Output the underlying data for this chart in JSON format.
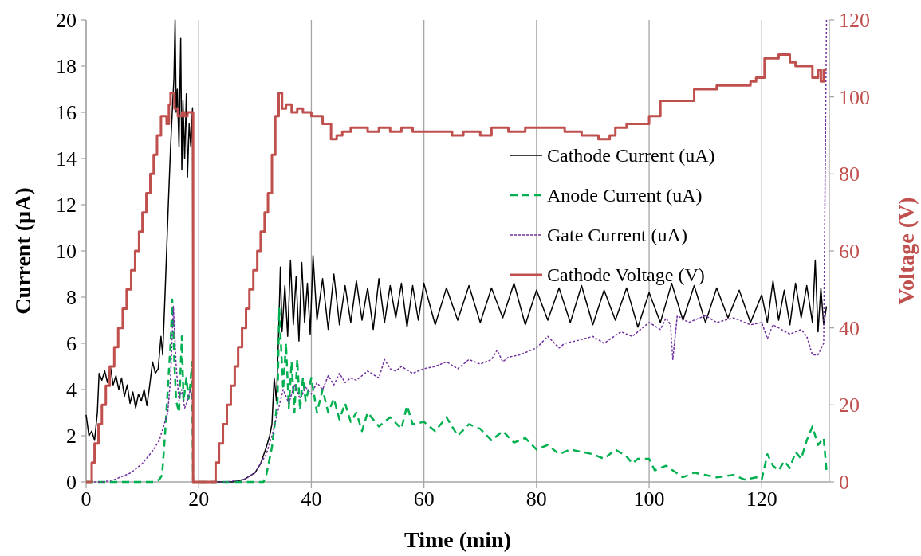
{
  "chart_data": {
    "type": "line",
    "xlabel": "Time (min)",
    "ylabel": "Current (µA)",
    "y2label": "Voltage (V)",
    "xlim": [
      0,
      132
    ],
    "xticks": [
      0,
      20,
      40,
      60,
      80,
      100,
      120
    ],
    "ylim": [
      0,
      20
    ],
    "yticks": [
      0,
      2,
      4,
      6,
      8,
      10,
      12,
      14,
      16,
      18,
      20
    ],
    "y2lim": [
      0,
      120
    ],
    "y2ticks": [
      0,
      20,
      40,
      60,
      80,
      100,
      120
    ],
    "grid": "x",
    "legend": "right",
    "series": [
      {
        "name": "Cathode Current (uA)",
        "color": "#000000",
        "line_style": "solid",
        "x": [
          0,
          0.5,
          1,
          1.5,
          2,
          2.3,
          2.8,
          3.3,
          3.8,
          4.3,
          4.8,
          5.3,
          5.8,
          6.3,
          6.8,
          7.3,
          7.8,
          8.3,
          8.8,
          9.3,
          9.8,
          10.3,
          10.8,
          11.3,
          11.8,
          12.3,
          12.8,
          13.3,
          13.6,
          14,
          14.3,
          14.6,
          15,
          15.3,
          15.6,
          15.8,
          16,
          16.2,
          16.5,
          16.8,
          17,
          17.2,
          17.5,
          17.8,
          18,
          18.3,
          18.6,
          18.9,
          19,
          22,
          26,
          28,
          30,
          31,
          32,
          32.6,
          33,
          33.4,
          33.8,
          34.2,
          34.5,
          34.8,
          35.3,
          35.8,
          36.3,
          36.8,
          37.3,
          37.8,
          38.3,
          38.8,
          39.3,
          39.8,
          40.3,
          41,
          42,
          43,
          44,
          45,
          46,
          47,
          48,
          49,
          50,
          51,
          52,
          53,
          54,
          55,
          56,
          57,
          58,
          59,
          60,
          62,
          64,
          66,
          68,
          70,
          72,
          74,
          76,
          78,
          80,
          82,
          84,
          86,
          88,
          90,
          92,
          94,
          96,
          98,
          100,
          102,
          104,
          106,
          108,
          110,
          112,
          114,
          116,
          118,
          120,
          121,
          122,
          123,
          124,
          125,
          126,
          127,
          128,
          129,
          129.5,
          130,
          130.5,
          131,
          131.5
        ],
        "values": [
          2.9,
          2.0,
          2.2,
          1.8,
          3.0,
          4.7,
          4.4,
          4.8,
          4.3,
          5.0,
          4.2,
          4.6,
          4.0,
          4.5,
          3.7,
          4.2,
          3.4,
          3.9,
          3.2,
          3.8,
          3.5,
          4.0,
          3.3,
          4.2,
          5.2,
          4.7,
          4.9,
          6.3,
          5.5,
          8.0,
          10,
          12,
          14.5,
          16,
          17.5,
          20,
          16,
          17,
          14.5,
          19.2,
          13.5,
          16.5,
          14,
          16.8,
          13.2,
          15.5,
          14.5,
          16.2,
          0,
          0,
          0,
          0.1,
          0.4,
          0.8,
          1.5,
          2.0,
          2.5,
          4.5,
          3.5,
          6.5,
          9.3,
          6.5,
          8.5,
          6.3,
          9.6,
          6.8,
          8.9,
          6.1,
          9.5,
          6.9,
          8.6,
          6.4,
          9.8,
          7.0,
          8.8,
          6.6,
          9.0,
          6.8,
          8.5,
          6.9,
          8.7,
          7.0,
          8.4,
          6.6,
          8.8,
          6.9,
          8.5,
          7.1,
          8.6,
          6.7,
          8.5,
          7.0,
          8.6,
          6.8,
          8.4,
          7.0,
          8.5,
          6.9,
          8.4,
          7.1,
          8.6,
          6.8,
          8.3,
          7.0,
          8.4,
          6.9,
          8.5,
          6.8,
          8.3,
          7.0,
          8.4,
          6.7,
          8.2,
          6.9,
          8.6,
          7.0,
          8.5,
          6.9,
          8.4,
          7.1,
          8.3,
          6.9,
          8.1,
          6.9,
          8.7,
          7.0,
          8.3,
          6.8,
          8.6,
          7.1,
          8.5,
          6.9,
          9.6,
          6.5,
          8.4,
          6.8,
          7.6
        ]
      },
      {
        "name": "Anode Current (uA)",
        "color": "#00b050",
        "line_style": "dashed",
        "x": [
          0,
          12,
          13,
          13.5,
          14,
          14.5,
          15,
          15.3,
          15.7,
          16,
          16.5,
          17,
          17.3,
          17.8,
          18.2,
          18.5,
          18.8,
          19,
          25,
          31.5,
          32,
          33,
          34,
          34.3,
          35,
          35.5,
          36,
          36.5,
          37,
          37.5,
          38,
          38.5,
          39,
          40,
          41,
          42,
          43,
          44,
          45,
          46,
          47,
          48,
          49,
          50,
          52,
          54,
          56,
          57,
          58,
          60,
          62,
          64,
          66,
          68,
          70,
          72,
          74,
          76,
          78,
          80,
          82,
          84,
          86,
          88,
          90,
          92,
          94,
          96,
          97,
          98,
          100,
          101,
          103,
          106,
          108,
          110,
          112,
          115,
          117,
          119,
          120,
          121,
          122,
          123,
          124,
          125,
          126,
          127,
          128,
          129,
          130,
          131,
          131.5
        ],
        "values": [
          0,
          0,
          0.1,
          0.3,
          2.0,
          4.0,
          6.0,
          7.9,
          5.0,
          3.5,
          3.0,
          6.3,
          3.5,
          4.5,
          3.6,
          4.2,
          5.2,
          0,
          0,
          0,
          0.3,
          1.5,
          3.5,
          7.5,
          4.0,
          6.0,
          3.2,
          5.2,
          3.0,
          5.3,
          3.1,
          4.5,
          3.5,
          4.5,
          3.0,
          4.0,
          3.0,
          3.6,
          2.7,
          3.4,
          2.6,
          3.0,
          2.2,
          3.0,
          2.4,
          2.8,
          2.3,
          3.3,
          2.5,
          2.6,
          2.2,
          2.8,
          2.0,
          2.5,
          2.3,
          1.8,
          2.2,
          1.7,
          1.9,
          1.4,
          1.6,
          1.2,
          1.4,
          1.3,
          1.2,
          1.0,
          1.4,
          1.1,
          0.8,
          1.0,
          1.0,
          0.5,
          0.7,
          0.2,
          0.4,
          0.3,
          0.2,
          0.3,
          0.1,
          0.2,
          0.1,
          1.2,
          0.7,
          0.5,
          0.9,
          0.6,
          1.3,
          1.0,
          1.8,
          2.4,
          1.6,
          1.9,
          0.5
        ]
      },
      {
        "name": "Gate Current (uA)",
        "color": "#7030a0",
        "line_style": "dotted",
        "x": [
          0,
          3,
          5,
          8,
          10,
          12,
          13,
          14,
          14.5,
          15,
          15.5,
          16,
          16.5,
          17,
          17.5,
          18,
          18.5,
          18.9,
          19,
          25,
          28,
          30,
          32,
          33,
          34,
          35,
          36,
          37,
          38,
          39,
          40,
          41,
          42,
          43,
          44,
          45,
          46,
          47,
          48,
          50,
          52,
          53,
          54,
          55,
          56,
          58,
          60,
          62,
          64,
          66,
          68,
          70,
          72,
          73,
          74,
          75,
          77,
          80,
          82,
          84,
          85,
          87,
          90,
          92,
          95,
          97,
          100,
          102,
          103,
          103.8,
          104.2,
          105,
          107,
          110,
          112,
          115,
          118,
          120,
          121,
          122,
          125,
          127,
          128,
          129,
          130,
          131,
          131.5
        ],
        "values": [
          0,
          0,
          0.1,
          0.4,
          0.8,
          1.4,
          1.8,
          2.6,
          3.0,
          4.5,
          7.6,
          5.0,
          3.5,
          4.0,
          3.2,
          3.5,
          4.0,
          3.6,
          0,
          0,
          0.1,
          0.4,
          1.2,
          2.0,
          3.0,
          4.0,
          3.4,
          4.2,
          3.6,
          4.1,
          3.8,
          4.3,
          4.0,
          4.6,
          4.2,
          4.7,
          4.3,
          4.5,
          4.4,
          4.8,
          4.5,
          5.3,
          4.9,
          4.8,
          5.0,
          4.7,
          4.9,
          5.0,
          5.2,
          4.9,
          5.3,
          5.1,
          5.3,
          5.7,
          5.2,
          5.4,
          5.5,
          5.8,
          6.3,
          5.8,
          6.0,
          6.1,
          6.3,
          6.0,
          6.5,
          6.3,
          6.9,
          6.6,
          7.1,
          6.8,
          5.3,
          7.2,
          6.9,
          7.2,
          6.9,
          7.1,
          6.8,
          6.9,
          6.2,
          6.8,
          6.4,
          6.6,
          6.3,
          5.5,
          5.5,
          6.0,
          20
        ]
      },
      {
        "name": "Cathode Voltage (V)",
        "color": "#c0504d",
        "type": "step",
        "axis": "y2",
        "line_style": "solid",
        "x": [
          0,
          0.5,
          1,
          1.5,
          2.2,
          2.8,
          3.5,
          4.2,
          5,
          5.7,
          6.5,
          7.2,
          8,
          8.7,
          9.4,
          10,
          10.7,
          11.4,
          12,
          12.6,
          13.3,
          14.3,
          14.7,
          15,
          15.7,
          16.3,
          17,
          17.5,
          18,
          19,
          22.5,
          23,
          23.6,
          24.3,
          25,
          25.7,
          26.4,
          27,
          27.7,
          28.4,
          29,
          29.7,
          30.4,
          31,
          31.7,
          32.3,
          33,
          33.6,
          34.2,
          34.8,
          35.5,
          36.5,
          37.5,
          38.5,
          40,
          42,
          43.5,
          44.5,
          45.5,
          47,
          50,
          52,
          54,
          56,
          58,
          60,
          65,
          67,
          70,
          72,
          75,
          78,
          85,
          88,
          91,
          93,
          94,
          96,
          97,
          100,
          102,
          104,
          105,
          108,
          110,
          112,
          118,
          119,
          120.5,
          121.5,
          123,
          125,
          126,
          127.5,
          129,
          130,
          130.5,
          131,
          131.5
        ],
        "values": [
          0,
          0,
          5,
          10,
          15,
          20,
          25,
          30,
          35,
          40,
          45,
          50,
          55,
          60,
          65,
          70,
          75,
          80,
          85,
          90,
          95,
          93,
          98,
          101,
          97,
          95,
          96,
          95,
          96,
          0,
          0,
          5,
          10,
          15,
          20,
          25,
          30,
          35,
          40,
          45,
          50,
          55,
          60,
          65,
          70,
          75,
          85,
          95,
          101,
          97,
          98,
          96,
          97,
          96,
          95,
          93,
          89,
          90,
          91,
          92,
          91,
          92,
          91,
          92,
          91,
          91,
          90,
          91,
          90,
          92,
          91,
          92,
          91,
          90,
          89,
          90,
          92,
          93,
          93,
          95,
          99,
          99,
          99,
          102,
          102,
          103,
          104,
          105,
          110,
          110,
          111,
          109,
          108,
          108,
          105,
          107,
          104,
          107,
          107
        ]
      }
    ]
  }
}
